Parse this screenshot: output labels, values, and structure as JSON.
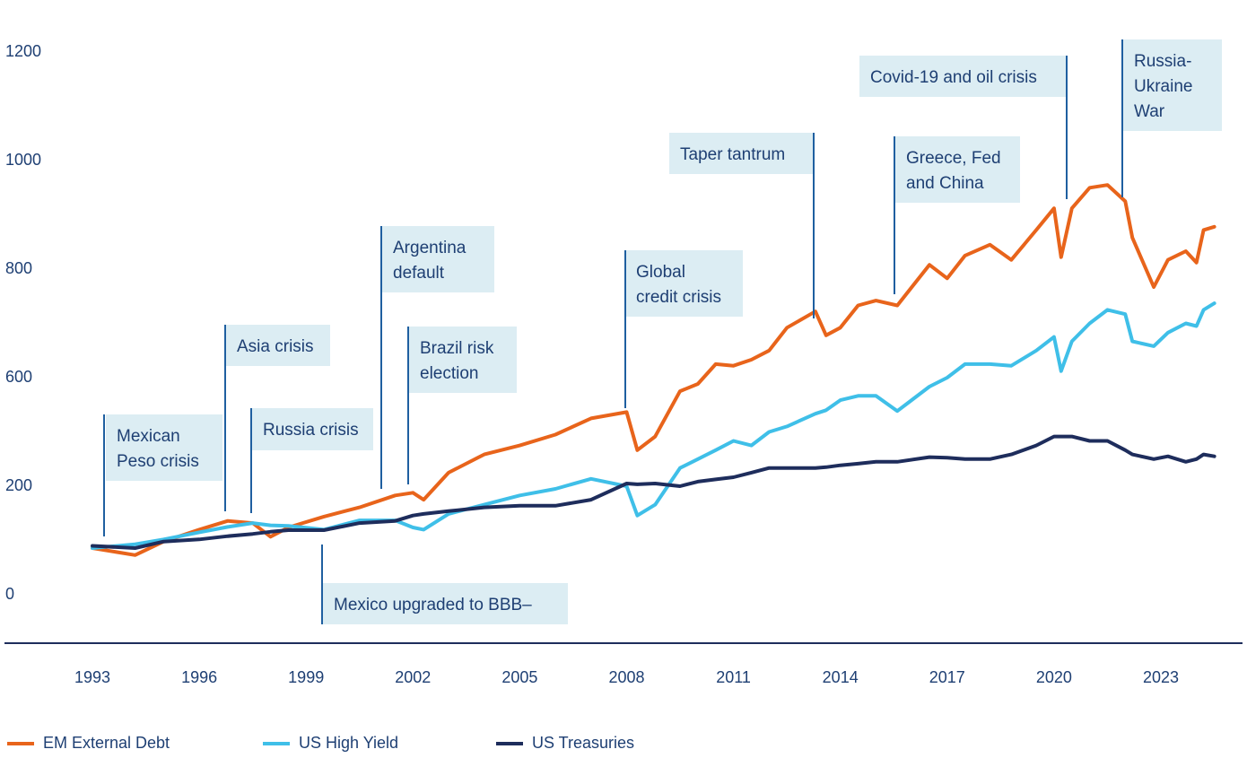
{
  "chart_data": {
    "type": "line",
    "x": [
      1993,
      1994.2,
      1995,
      1996,
      1996.8,
      1997.5,
      1998,
      1998.5,
      1999.5,
      2000.5,
      2001.5,
      2002,
      2002.3,
      2003,
      2004,
      2005,
      2006,
      2007,
      2008,
      2008.3,
      2008.8,
      2009.5,
      2010,
      2010.5,
      2011,
      2011.5,
      2012,
      2012.5,
      2013.3,
      2013.6,
      2014,
      2014.5,
      2015,
      2015.6,
      2016.5,
      2017,
      2017.5,
      2018.2,
      2018.8,
      2019.5,
      2020,
      2020.2,
      2020.5,
      2021,
      2021.5,
      2022,
      2022.2,
      2022.8,
      2023.2,
      2023.7,
      2024,
      2024.2,
      2024.5
    ],
    "series": [
      {
        "name": "EM External Debt",
        "color": "#e8641b",
        "values": [
          86,
          73,
          98,
          120,
          136,
          132,
          107,
          124,
          144,
          161,
          183,
          188,
          175,
          250,
          317,
          350,
          390,
          450,
          473,
          333,
          383,
          550,
          577,
          625,
          622,
          633,
          650,
          692,
          722,
          678,
          692,
          733,
          742,
          733,
          808,
          783,
          825,
          845,
          817,
          872,
          912,
          822,
          912,
          950,
          955,
          925,
          858,
          767,
          817,
          833,
          812,
          872,
          878
        ]
      },
      {
        "name": "US High Yield",
        "color": "#3fbfe8",
        "values": [
          86,
          93,
          102,
          115,
          125,
          132,
          128,
          127,
          120,
          137,
          137,
          124,
          120,
          149,
          166,
          183,
          195,
          227,
          200,
          146,
          166,
          267,
          300,
          333,
          367,
          350,
          400,
          420,
          467,
          480,
          517,
          533,
          533,
          477,
          567,
          600,
          625,
          625,
          622,
          650,
          675,
          612,
          667,
          700,
          725,
          717,
          667,
          658,
          683,
          700,
          695,
          725,
          737
        ]
      },
      {
        "name": "US Treasuries",
        "color": "#1e2d5c",
        "values": [
          90,
          86,
          98,
          102,
          108,
          112,
          116,
          119,
          119,
          132,
          136,
          146,
          149,
          154,
          161,
          164,
          164,
          175,
          210,
          207,
          210,
          200,
          217,
          225,
          233,
          250,
          267,
          267,
          267,
          270,
          277,
          283,
          290,
          290,
          307,
          305,
          300,
          300,
          317,
          350,
          383,
          383,
          383,
          367,
          367,
          333,
          317,
          300,
          310,
          290,
          300,
          317,
          310
        ]
      }
    ],
    "xlim": [
      1992,
      2025
    ],
    "xticks": [
      1993,
      1996,
      1999,
      2002,
      2005,
      2008,
      2011,
      2014,
      2017,
      2020,
      2023
    ],
    "ylim": [
      0,
      1200
    ],
    "yticks": [
      0,
      200,
      600,
      800,
      1000,
      1200
    ],
    "grid": false,
    "legend": "bottom",
    "annotations": [
      "Mexican\nPeso crisis",
      "Asia crisis",
      "Russia crisis",
      "Argentina\ndefault",
      "Brazil risk\nelection",
      "Mexico upgraded to BBB–",
      "Global\ncredit crisis",
      "Taper tantrum",
      "Greece, Fed\nand China",
      "Covid-19 and oil crisis",
      "Russia-\nUkraine\nWar"
    ]
  }
}
